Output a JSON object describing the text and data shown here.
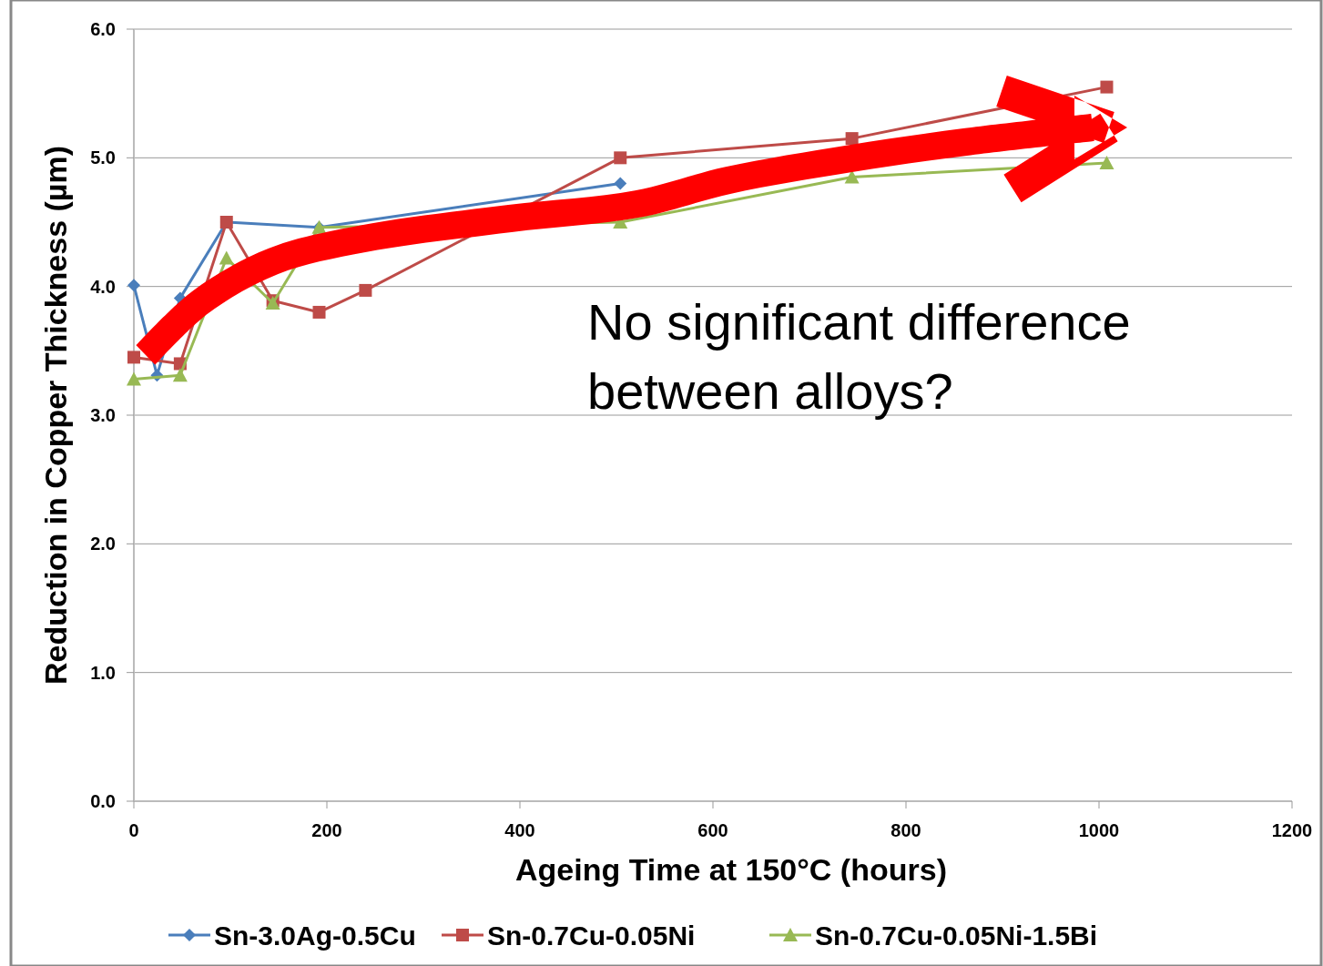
{
  "chart_data": {
    "type": "line",
    "xlabel": "Ageing Time at 150°C (hours)",
    "ylabel": "Reduction in Copper Thickness (µm)",
    "x": [
      0,
      24,
      48,
      96,
      144,
      192,
      240,
      504,
      744,
      1008
    ],
    "series": [
      {
        "name": "Sn-3.0Ag-0.5Cu",
        "color": "#4a7ebb",
        "marker": "diamond",
        "values": [
          4.01,
          3.31,
          3.91,
          4.5,
          null,
          4.46,
          null,
          4.8,
          null,
          null
        ]
      },
      {
        "name": "Sn-0.7Cu-0.05Ni",
        "color": "#be4b48",
        "marker": "square",
        "values": [
          3.45,
          null,
          3.4,
          4.5,
          3.89,
          3.8,
          3.97,
          5.0,
          5.15,
          5.55
        ]
      },
      {
        "name": "Sn-0.7Cu-0.05Ni-1.5Bi",
        "color": "#98b954",
        "marker": "triangle",
        "values": [
          3.28,
          null,
          3.31,
          4.22,
          3.87,
          4.46,
          null,
          4.5,
          4.85,
          4.96
        ]
      }
    ],
    "xlim": [
      0,
      1200
    ],
    "xticks": [
      0,
      200,
      400,
      600,
      800,
      1000,
      1200
    ],
    "ylim": [
      0,
      6
    ],
    "yticks": [
      {
        "value": 0,
        "label": "0.0"
      },
      {
        "value": 1,
        "label": "1.0"
      },
      {
        "value": 2,
        "label": "2.0"
      },
      {
        "value": 3,
        "label": "3.0"
      },
      {
        "value": 4,
        "label": "4.0"
      },
      {
        "value": 5,
        "label": "5.0"
      },
      {
        "value": 6,
        "label": "6.0"
      }
    ],
    "grid": "y",
    "legend": "bottom",
    "line_style": "solid",
    "annotations": [
      "No significant difference between alloys?"
    ]
  }
}
